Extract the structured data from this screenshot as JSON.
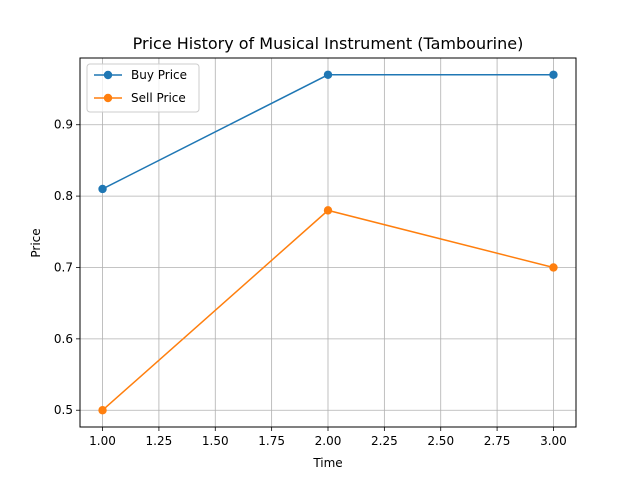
{
  "chart_data": {
    "type": "line",
    "title": "Price History of Musical Instrument (Tambourine)",
    "xlabel": "Time",
    "ylabel": "Price",
    "x": [
      1.0,
      2.0,
      3.0
    ],
    "xlim": [
      0.9,
      3.1
    ],
    "ylim": [
      0.4765,
      0.9935
    ],
    "xticks": [
      "1.00",
      "1.25",
      "1.50",
      "1.75",
      "2.00",
      "2.25",
      "2.50",
      "2.75",
      "3.00"
    ],
    "xtick_values": [
      1.0,
      1.25,
      1.5,
      1.75,
      2.0,
      2.25,
      2.5,
      2.75,
      3.0
    ],
    "yticks": [
      "0.5",
      "0.6",
      "0.7",
      "0.8",
      "0.9"
    ],
    "ytick_values": [
      0.5,
      0.6,
      0.7,
      0.8,
      0.9
    ],
    "grid": true,
    "legend_position": "upper-left",
    "series": [
      {
        "name": "Buy Price",
        "values": [
          0.81,
          0.97,
          0.97
        ],
        "color": "#1f77b4",
        "marker": "circle"
      },
      {
        "name": "Sell Price",
        "values": [
          0.5,
          0.78,
          0.7
        ],
        "color": "#ff7f0e",
        "marker": "circle"
      }
    ]
  }
}
